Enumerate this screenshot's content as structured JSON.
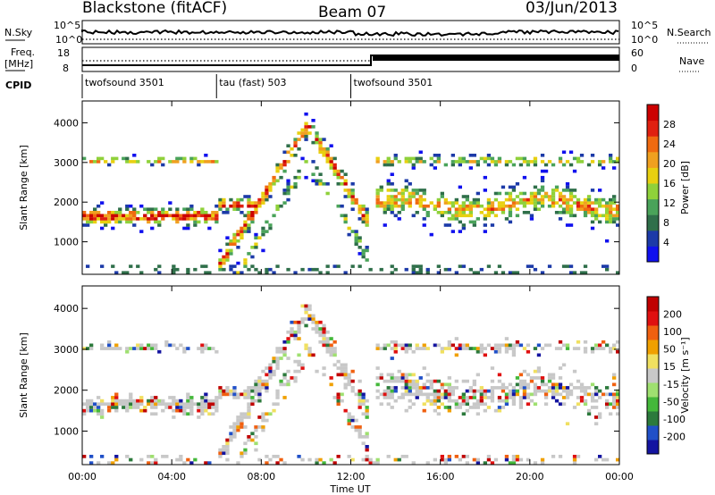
{
  "header": {
    "station": "Blackstone (fitACF)",
    "beam": "Beam 07",
    "date": "03/Jun/2013"
  },
  "top_panels": {
    "nsky_label": "N.Sky",
    "nsearch_label": "N.Search",
    "nsky_ticks": [
      "10^5",
      "10^0"
    ],
    "nsearch_ticks": [
      "10^5",
      "10^0"
    ],
    "freq_label_line1": "Freq.",
    "freq_label_line2": "[MHz]",
    "freq_ticks": [
      "18",
      "8"
    ],
    "nave_label": "Nave",
    "nave_ticks": [
      "60",
      "0"
    ],
    "cpid_label": "CPID"
  },
  "chart_data": [
    {
      "type": "timeline",
      "name": "CPID",
      "segments": [
        {
          "label": "twofsound 3501",
          "start_hour": 0,
          "end_hour": 6
        },
        {
          "label": "tau (fast) 503",
          "start_hour": 6,
          "end_hour": 12
        },
        {
          "label": "twofsound 3501",
          "start_hour": 12,
          "end_hour": 24
        }
      ]
    },
    {
      "type": "heatmap",
      "name": "Power",
      "xlabel": "",
      "ylabel": "Slant Range [km]",
      "xlim": [
        0,
        24
      ],
      "ylim": [
        180,
        4550
      ],
      "y_ticks": [
        1000,
        2000,
        3000,
        4000
      ],
      "colorbar": {
        "label": "Power [dB]",
        "ticks": [
          "28",
          "24",
          "20",
          "16",
          "12",
          "8",
          "4"
        ],
        "colors": [
          "#1010ee",
          "#1c3aa8",
          "#2f6f4a",
          "#4aa35a",
          "#8fd13a",
          "#e8d010",
          "#f0a020",
          "#f06a10",
          "#e02010",
          "#cc0000"
        ]
      }
    },
    {
      "type": "heatmap",
      "name": "Velocity",
      "xlabel": "Time UT",
      "ylabel": "Slant Range [km]",
      "xlim": [
        0,
        24
      ],
      "ylim": [
        180,
        4550
      ],
      "x_ticks": [
        "00:00",
        "04:00",
        "08:00",
        "12:00",
        "16:00",
        "20:00",
        "00:00"
      ],
      "y_ticks": [
        1000,
        2000,
        3000,
        4000
      ],
      "colorbar": {
        "label": "Velocity [m s⁻¹]",
        "ticks": [
          "200",
          "100",
          "50",
          "15",
          "-15",
          "-50",
          "-100",
          "-200"
        ],
        "colors": [
          "#1414a0",
          "#2050c8",
          "#2c7a3c",
          "#44b83a",
          "#9fe070",
          "#c8c8c8",
          "#f0e060",
          "#f0a000",
          "#f06010",
          "#e01010",
          "#c00000"
        ]
      }
    }
  ],
  "x_axis_title": "Time UT"
}
